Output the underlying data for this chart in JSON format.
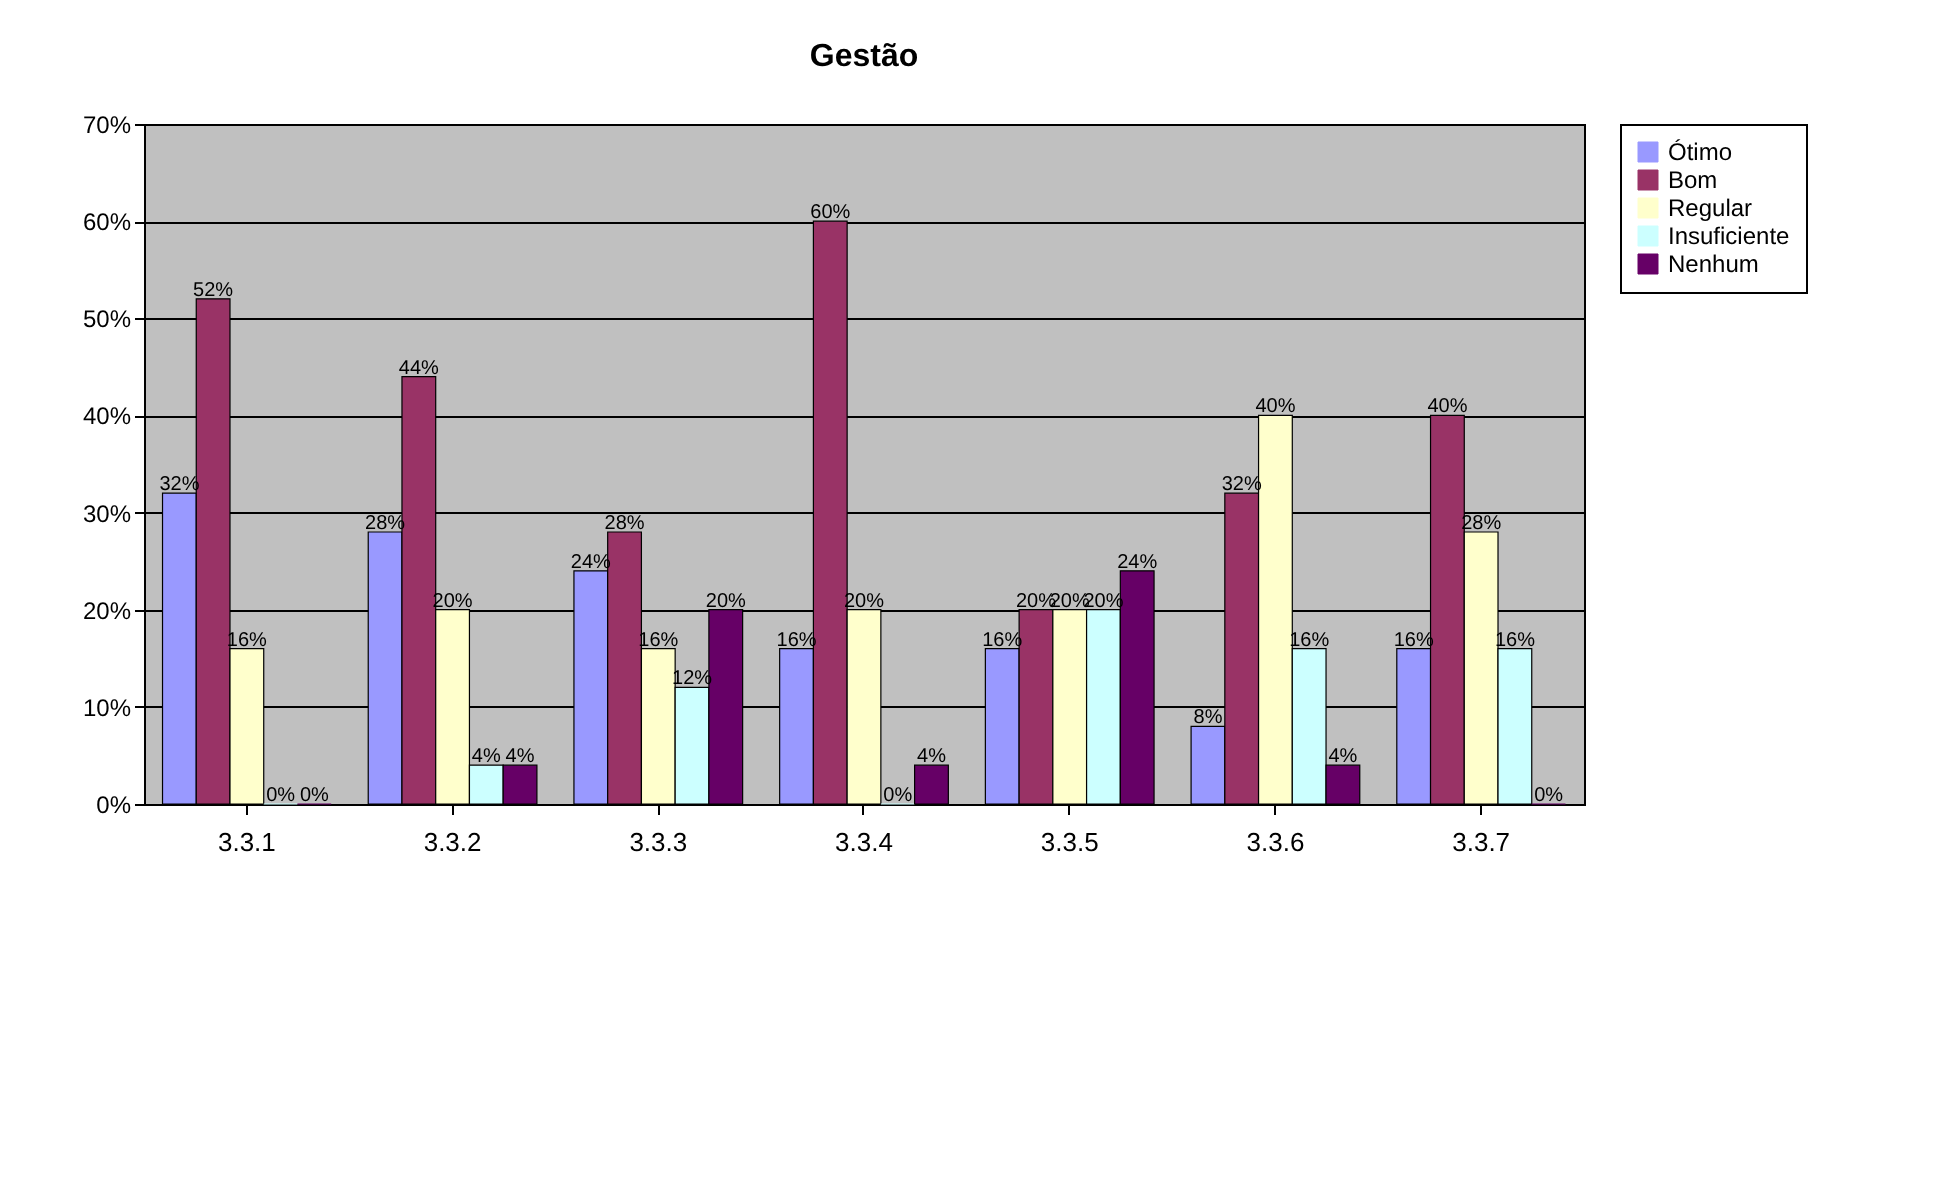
{
  "chart_data": {
    "type": "bar",
    "title": "Gestão",
    "categories": [
      "3.3.1",
      "3.3.2",
      "3.3.3",
      "3.3.4",
      "3.3.5",
      "3.3.6",
      "3.3.7"
    ],
    "series": [
      {
        "name": "Ótimo",
        "color": "#9999ff",
        "values": [
          32,
          28,
          24,
          16,
          16,
          8,
          16
        ],
        "value_labels": [
          "32%",
          "28%",
          "24%",
          "16%",
          "16%",
          "8%",
          "16%"
        ]
      },
      {
        "name": "Bom",
        "color": "#993366",
        "values": [
          52,
          44,
          28,
          60,
          20,
          32,
          40
        ],
        "value_labels": [
          "52%",
          "44%",
          "28%",
          "60%",
          "20%",
          "32%",
          "40%"
        ]
      },
      {
        "name": "Regular",
        "color": "#ffffcc",
        "values": [
          16,
          20,
          16,
          20,
          20,
          40,
          28
        ],
        "value_labels": [
          "16%",
          "20%",
          "16%",
          "20%",
          "20%",
          "40%",
          "28%"
        ]
      },
      {
        "name": "Insuficiente",
        "color": "#ccffff",
        "values": [
          0,
          4,
          12,
          0,
          20,
          16,
          16
        ],
        "value_labels": [
          "0%",
          "4%",
          "12%",
          "0%",
          "20%",
          "16%",
          "16%"
        ]
      },
      {
        "name": "Nenhum",
        "color": "#660066",
        "values": [
          0,
          4,
          20,
          4,
          24,
          4,
          0
        ],
        "value_labels": [
          "0%",
          "4%",
          "20%",
          "4%",
          "24%",
          "4%",
          "0%"
        ]
      }
    ],
    "ylim": [
      0,
      70
    ],
    "yticks": [
      {
        "value": 0,
        "label": "0%"
      },
      {
        "value": 10,
        "label": "10%"
      },
      {
        "value": 20,
        "label": "20%"
      },
      {
        "value": 30,
        "label": "30%"
      },
      {
        "value": 40,
        "label": "40%"
      },
      {
        "value": 50,
        "label": "50%"
      },
      {
        "value": 60,
        "label": "60%"
      },
      {
        "value": 70,
        "label": "70%"
      }
    ],
    "grid": "y",
    "legend": "right"
  }
}
